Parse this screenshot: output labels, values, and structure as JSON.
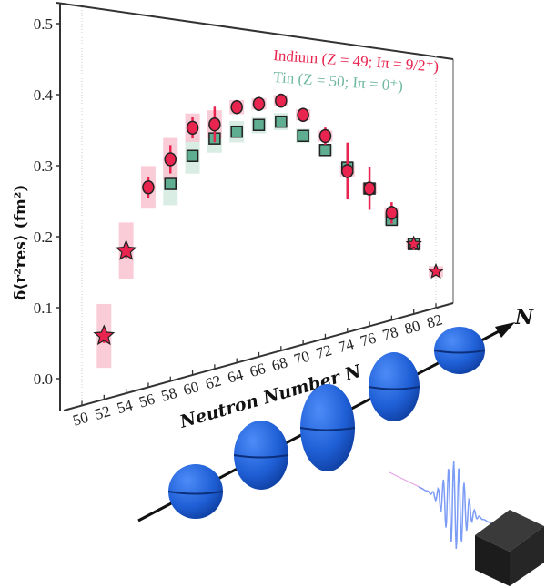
{
  "chart_data": {
    "type": "scatter",
    "xlabel": "Neutron Number N",
    "ylabel": "δ⟨r²res⟩ (fm²)",
    "x_ticks": [
      "50",
      "52",
      "54",
      "56",
      "58",
      "60",
      "62",
      "64",
      "66",
      "68",
      "70",
      "72",
      "74",
      "76",
      "78",
      "80",
      "82"
    ],
    "y_ticks": [
      "0.0",
      "0.1",
      "0.2",
      "0.3",
      "0.4",
      "0.5"
    ],
    "xlim": [
      50,
      82
    ],
    "ylim": [
      0,
      0.5
    ],
    "legend_position": "top-right",
    "series": [
      {
        "name": "Indium (Z = 49; Iπ = 9/2⁺)",
        "color": "#e8244f",
        "marker": "circle (star for N=52, 54, 80, 82)",
        "x": [
          52,
          54,
          56,
          58,
          60,
          62,
          64,
          66,
          68,
          70,
          72,
          74,
          76,
          78,
          80,
          82
        ],
        "y": [
          0.06,
          0.18,
          0.27,
          0.31,
          0.355,
          0.36,
          0.385,
          0.39,
          0.395,
          0.375,
          0.345,
          0.295,
          0.27,
          0.235,
          0.19,
          0.15
        ],
        "stat_err": [
          0.01,
          0.01,
          0.015,
          0.02,
          0.015,
          0.025,
          0.01,
          0.01,
          0.01,
          0.01,
          0.012,
          0.04,
          0.03,
          0.015,
          0.008,
          0.005
        ],
        "sys_err": [
          0.045,
          0.04,
          0.03,
          0.03,
          0.02,
          0.02,
          0.01,
          0.008,
          0.008,
          0.006,
          0.005,
          0.004,
          0.003,
          0.003,
          0.002,
          0.002
        ]
      },
      {
        "name": "Tin (Z = 50; Iπ = 0⁺)",
        "color": "#6fb8a0",
        "marker": "square",
        "x": [
          58,
          60,
          62,
          64,
          66,
          68,
          70,
          72,
          74,
          76,
          78,
          80
        ],
        "y": [
          0.275,
          0.315,
          0.34,
          0.35,
          0.36,
          0.365,
          0.345,
          0.325,
          0.3,
          0.27,
          0.225,
          0.19
        ],
        "sys_err": [
          0.03,
          0.025,
          0.02,
          0.015,
          0.012,
          0.012,
          0.01,
          0.006,
          0.005,
          0.004,
          0.003,
          0.002
        ]
      }
    ]
  },
  "illustration": {
    "axis_label": "N",
    "nucleus_color": "#1f63d8",
    "wave_color": "#7c9cf5",
    "detector_color": "#1c1c1c"
  }
}
